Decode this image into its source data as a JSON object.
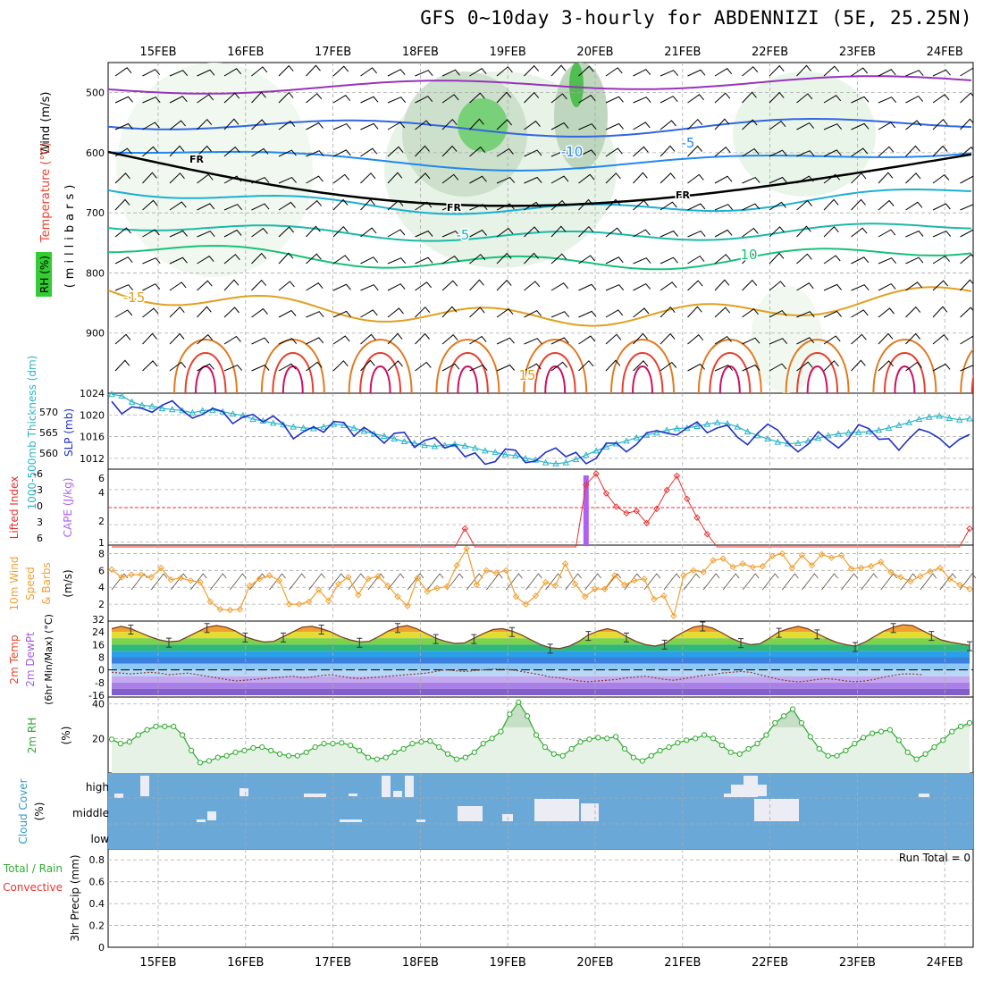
{
  "header": {
    "title": "GFS 0~10day 3-hourly for ABDENNIZI (5E, 25.25N)"
  },
  "colors": {
    "temperature": "#e8442c",
    "rh": "#33cc33",
    "wind": "#000000",
    "thickness": "#2ab5c8",
    "slp": "#2030c8",
    "lifted_index": "#e83030",
    "cape": "#b060f0",
    "wind10m": "#f0a030",
    "temp2m": "#f0a030",
    "dewpt2m": "#a060e0",
    "rh2m": "#2ea82e",
    "cloud": "#3399cc",
    "rain": "#33aa33",
    "convective": "#ee3333"
  },
  "date_labels": [
    "15FEB",
    "16FEB",
    "17FEB",
    "18FEB",
    "19FEB",
    "20FEB",
    "21FEB",
    "22FEB",
    "23FEB",
    "24FEB"
  ],
  "chart_data": [
    {
      "type": "heatmap",
      "panel": "upper-air",
      "ylabel_parts": [
        "Wind (m/s)",
        "Temperature (°C)",
        "(millibars)",
        "RH (%)"
      ],
      "yticks": [
        500,
        600,
        700,
        800,
        900
      ],
      "ylim": [
        1000,
        450
      ],
      "contour_labels": [
        "-10",
        "-5",
        "FR",
        "FR",
        "FR",
        "-5",
        "10",
        "15",
        "15",
        "-15"
      ],
      "grid": true
    },
    {
      "type": "line",
      "panel": "pressure",
      "ylabel_left": "1000-500mb Thickness (dm)",
      "ylabel_right": "SLP (mb)",
      "yticks_left": [
        560,
        565,
        570
      ],
      "yticks_right": [
        1012,
        1016,
        1020,
        1024
      ],
      "series": [
        {
          "name": "SLP",
          "values": [
            1022.5,
            1020.2,
            1021.5,
            1021.2,
            1020.5,
            1021.8,
            1022.6,
            1020.8,
            1019.4,
            1020.1,
            1021.2,
            1020.6,
            1018.4,
            1019.6,
            1020.1,
            1018.7,
            1019.8,
            1018.3,
            1015.6,
            1016.9,
            1017.8,
            1016.8,
            1018.8,
            1018.6,
            1016.1,
            1017.7,
            1016.5,
            1014.8,
            1016.6,
            1016.8,
            1014.0,
            1015.3,
            1015.8,
            1013.9,
            1014.5,
            1012.3,
            1013.0,
            1010.9,
            1011.4,
            1013.7,
            1013.5,
            1011.2,
            1011.5,
            1013.1,
            1013.9,
            1012.3,
            1013.1,
            1011.0,
            1012.0,
            1014.8,
            1014.8,
            1013.2,
            1014.6,
            1016.7,
            1017.1,
            1016.6,
            1016.3,
            1017.6,
            1018.7,
            1016.7,
            1017.6,
            1018.1,
            1015.9,
            1014.5,
            1016.6,
            1018.3,
            1017.2,
            1014.8,
            1013.2,
            1014.6,
            1016.9,
            1015.3,
            1013.9,
            1015.6,
            1018.2,
            1017.5,
            1015.5,
            1015.6,
            1013.5,
            1015.6,
            1017.4,
            1016.8,
            1015.7,
            1014.0,
            1015.5,
            1016.4
          ]
        },
        {
          "name": "Thickness",
          "values": [
            1023.8,
            1023.5,
            1022.4,
            1021.8,
            1021.6,
            1021.2,
            1021.0,
            1020.8,
            1020.4,
            1020.8,
            1020.9,
            1020.6,
            1020.2,
            1019.9,
            1019.2,
            1018.9,
            1018.5,
            1018.2,
            1017.8,
            1017.6,
            1017.5,
            1017.8,
            1018.3,
            1018.1,
            1017.6,
            1017.0,
            1016.5,
            1016.1,
            1015.6,
            1015.1,
            1014.8,
            1014.4,
            1014.2,
            1014.4,
            1014.6,
            1014.3,
            1013.9,
            1013.4,
            1013.1,
            1012.7,
            1012.5,
            1012.0,
            1011.7,
            1011.2,
            1011.0,
            1011.2,
            1011.8,
            1012.6,
            1013.4,
            1014.1,
            1014.7,
            1015.2,
            1015.8,
            1016.3,
            1016.7,
            1017.2,
            1017.5,
            1017.6,
            1017.9,
            1018.3,
            1018.6,
            1018.4,
            1017.8,
            1016.9,
            1016.2,
            1015.6,
            1015.0,
            1014.7,
            1014.8,
            1015.2,
            1015.7,
            1016.2,
            1016.5,
            1016.7,
            1016.8,
            1016.9,
            1017.2,
            1017.6,
            1018.1,
            1018.6,
            1019.2,
            1019.6,
            1019.8,
            1019.4,
            1019.1,
            1019.3
          ]
        }
      ],
      "grid": true
    },
    {
      "type": "line",
      "panel": "stability",
      "ylabel_left": "Lifted Index",
      "ylabel_right": "CAPE (J/kg)",
      "yticks_left": [
        "-6",
        "-3",
        "0",
        "3",
        "6"
      ],
      "yticks_right": [
        1,
        2,
        4,
        6
      ],
      "series": [
        {
          "name": "Lifted Index",
          "values": [
            6.5,
            6.5,
            6.5,
            6.5,
            6.5,
            6.5,
            6.5,
            6.5,
            6.5,
            6.5,
            6.5,
            6.5,
            6.5,
            6.5,
            6.5,
            6.5,
            6.5,
            6.5,
            6.5,
            6.5,
            6.5,
            6.5,
            6.5,
            6.5,
            6.5,
            6.5,
            6.5,
            6.5,
            6.5,
            6.5,
            6.5,
            6.5,
            6.5,
            6.5,
            6.5,
            5.0,
            6.5,
            6.5,
            6.5,
            6.5,
            6.5,
            6.5,
            6.5,
            6.5,
            6.5,
            6.5,
            6.5,
            1.0,
            0.0,
            1.8,
            3.0,
            3.6,
            3.4,
            4.5,
            3.2,
            1.5,
            0.2,
            2.3,
            4.0,
            5.5,
            6.5,
            6.5,
            6.5,
            6.5,
            6.5,
            6.5,
            6.5,
            6.5,
            6.5,
            6.5,
            6.5,
            6.5,
            6.5,
            6.5,
            6.5,
            6.5,
            6.5,
            6.5,
            6.5,
            6.5,
            6.5,
            6.5,
            6.5,
            6.5,
            6.5,
            5.0
          ]
        }
      ],
      "cape_spike": {
        "time_index": 47,
        "value": 6.2
      },
      "reference_line": 0,
      "grid": true
    },
    {
      "type": "line",
      "panel": "wind10m",
      "ylabel": "10m Wind Speed & Barbs (m/s)",
      "yticks": [
        2,
        4,
        6,
        8
      ],
      "series": [
        {
          "name": "Speed",
          "values": [
            6.1,
            5.2,
            5.5,
            5.5,
            5.2,
            6.3,
            4.9,
            5.1,
            4.8,
            4.6,
            2.3,
            1.4,
            1.3,
            1.4,
            4.2,
            5.0,
            5.4,
            4.8,
            2.0,
            2.0,
            2.3,
            3.7,
            2.4,
            4.4,
            5.2,
            3.1,
            5.0,
            5.3,
            4.2,
            2.9,
            1.8,
            5.1,
            3.5,
            3.9,
            4.1,
            6.6,
            8.6,
            4.3,
            6.0,
            5.7,
            6.0,
            2.9,
            2.0,
            3.0,
            4.6,
            4.2,
            6.8,
            4.4,
            2.9,
            3.8,
            3.8,
            5.4,
            4.3,
            4.8,
            5.0,
            2.6,
            3.0,
            0.6,
            5.4,
            6.0,
            5.8,
            7.2,
            7.4,
            6.4,
            6.8,
            6.4,
            6.5,
            7.7,
            8.0,
            6.3,
            7.8,
            6.6,
            7.9,
            7.5,
            7.8,
            6.2,
            6.3,
            6.5,
            7.0,
            5.8,
            5.2,
            4.7,
            5.3,
            5.9,
            6.3,
            5.0,
            4.3,
            3.8
          ]
        }
      ],
      "grid": true
    },
    {
      "type": "area",
      "panel": "temperature2m",
      "ylabel_parts": [
        "2m Temp",
        "2m DewPt",
        "(6hr Min/Max) (°C)"
      ],
      "yticks": [
        "32",
        "24",
        "16",
        "8",
        "0",
        "-8",
        "-16"
      ],
      "series": [
        {
          "name": "2m Temp",
          "values": [
            26,
            27.5,
            26,
            23.5,
            21,
            19,
            17.8,
            18.2,
            21,
            24,
            27,
            28,
            27,
            24.5,
            21,
            19,
            17.6,
            18,
            21,
            24,
            27,
            27.5,
            26,
            24,
            21,
            19,
            17.7,
            18,
            21,
            24.5,
            27,
            28,
            26,
            23,
            20,
            18,
            16.7,
            17,
            20,
            23,
            25.5,
            26,
            24.5,
            22,
            19,
            16,
            14,
            13.5,
            15,
            18,
            22,
            24.5,
            26,
            24.5,
            21,
            18,
            16,
            15,
            16.5,
            20.5,
            24,
            27,
            28,
            26.5,
            23.5,
            20,
            17.5,
            16,
            16.5,
            20,
            24,
            26,
            27.5,
            26,
            23,
            20,
            17.5,
            16,
            15,
            17.5,
            21,
            24.5,
            27,
            28.5,
            28,
            25,
            22,
            19,
            17.5,
            16.5,
            15.5
          ]
        },
        {
          "name": "2m DewPt",
          "values": [
            -1.5,
            -2,
            -2.5,
            -2,
            -1.5,
            -2,
            -3,
            -2.5,
            -2,
            -3,
            -4,
            -5,
            -6,
            -7,
            -6.5,
            -6,
            -5.5,
            -5,
            -4.5,
            -4,
            -5,
            -4.5,
            -3.5,
            -3,
            -4,
            -5,
            -5.5,
            -5,
            -4.5,
            -4,
            -3.5,
            -3,
            -2.5,
            -2,
            -1,
            0,
            -0.5,
            -1,
            -0.5,
            0,
            0.5,
            0.5,
            0,
            -1,
            -2,
            -3,
            -4.5,
            -5,
            -6,
            -7,
            -7.5,
            -7,
            -6.5,
            -6,
            -5,
            -4.5,
            -4,
            -5,
            -6,
            -6.5,
            -5.5,
            -4.5,
            -3.5,
            -3,
            -2,
            -1.5,
            -1,
            -1.5,
            -3,
            -4.5,
            -6,
            -7,
            -7.5,
            -7,
            -6,
            -5.5,
            -6,
            -7,
            -7.5,
            -7,
            -6,
            -4.5,
            -3.5,
            -2.5,
            -2.5,
            -3
          ]
        }
      ],
      "grid": true
    },
    {
      "type": "area",
      "panel": "rh2m",
      "ylabel": "2m RH (%)",
      "yticks": [
        20,
        40
      ],
      "series": [
        {
          "name": "2m RH",
          "values": [
            19.5,
            17,
            18,
            22,
            25,
            27,
            27,
            27,
            22,
            13,
            6,
            7,
            9,
            10,
            12,
            13,
            14.5,
            15,
            13,
            11,
            10,
            10,
            12,
            15,
            17,
            17,
            17.5,
            16,
            13,
            9,
            8,
            9,
            12,
            14,
            17,
            18,
            18.5,
            15,
            11,
            8,
            9,
            12,
            17,
            20,
            24,
            34,
            41,
            33,
            22,
            15,
            11,
            10,
            14,
            18,
            19.5,
            20.5,
            20,
            21,
            14,
            9,
            7,
            10,
            13,
            15,
            17.5,
            19,
            20,
            22,
            20,
            16,
            12,
            11,
            14,
            17,
            22,
            29,
            33,
            37,
            29,
            21,
            14,
            10,
            10,
            13,
            17,
            20.5,
            23,
            24,
            25,
            19,
            12,
            8,
            11,
            15,
            19,
            24,
            27,
            29
          ]
        }
      ],
      "grid": true
    },
    {
      "type": "heatmap",
      "panel": "cloud",
      "ylabel": "Cloud Cover (%)",
      "yticks": [
        "high",
        "middle",
        "low"
      ],
      "grid": true
    },
    {
      "type": "bar",
      "panel": "precip",
      "ylabel_parts": [
        "Total / Rain",
        "Convective",
        "3hr Precip (mm)"
      ],
      "yticks": [
        "0",
        "0.2",
        "0.4",
        "0.6",
        "0.8"
      ],
      "ylim": [
        0,
        0.9
      ],
      "run_total": "Run Total = 0",
      "values": [],
      "grid": true
    }
  ]
}
